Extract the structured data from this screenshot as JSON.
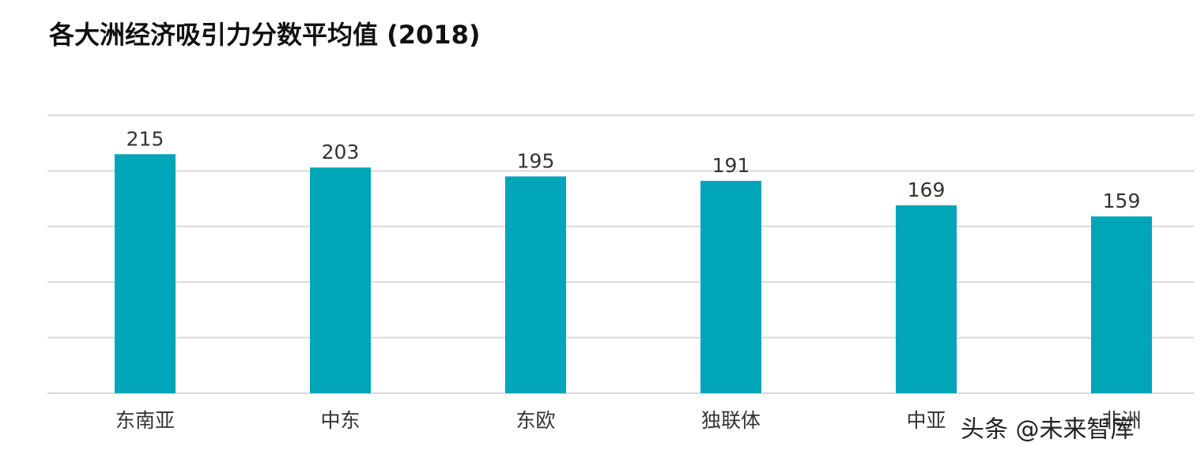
{
  "chart_data": {
    "type": "bar",
    "title": "各大洲经济吸引力分数平均值 (2018)",
    "categories": [
      "东南亚",
      "中东",
      "东欧",
      "独联体",
      "中亚",
      "非洲"
    ],
    "values": [
      215,
      203,
      195,
      191,
      169,
      159
    ],
    "color": "#00a5b8",
    "ylim": [
      0,
      250
    ],
    "yticks": [
      0,
      50,
      100,
      150,
      200,
      250
    ],
    "grid": true
  },
  "watermark": "头条 @未来智库"
}
